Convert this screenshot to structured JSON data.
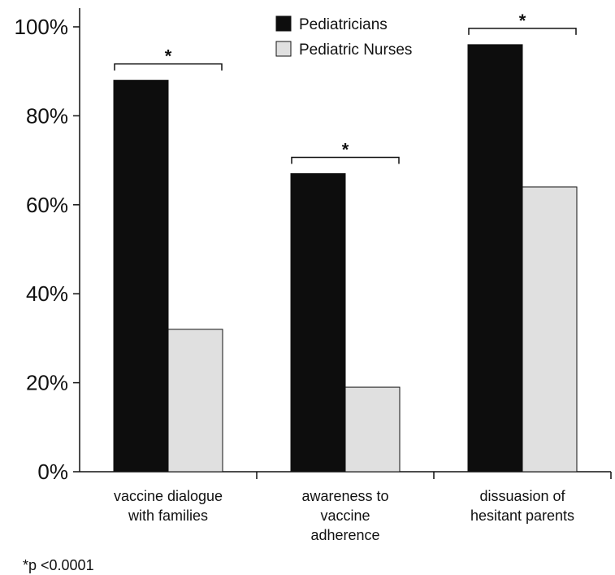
{
  "chart_data": {
    "type": "bar",
    "categories": [
      [
        "vaccine dialogue",
        "with families"
      ],
      [
        "awareness to",
        "vaccine",
        "adherence"
      ],
      [
        "dissuasion of",
        "hesitant parents"
      ]
    ],
    "series": [
      {
        "name": "Pediatricians",
        "color": "#0d0d0d",
        "values": [
          88,
          67,
          96
        ]
      },
      {
        "name": "Pediatric Nurses",
        "color": "#e0e0e0",
        "values": [
          32,
          19,
          64
        ]
      }
    ],
    "ylim": [
      0,
      100
    ],
    "yticks": [
      "0%",
      "20%",
      "40%",
      "60%",
      "80%",
      "100%"
    ],
    "ytick_values": [
      0,
      20,
      40,
      60,
      80,
      100
    ],
    "significance_marker": "*",
    "legend_position": "top-center",
    "grid": false
  },
  "footnote": "*p <0.0001"
}
